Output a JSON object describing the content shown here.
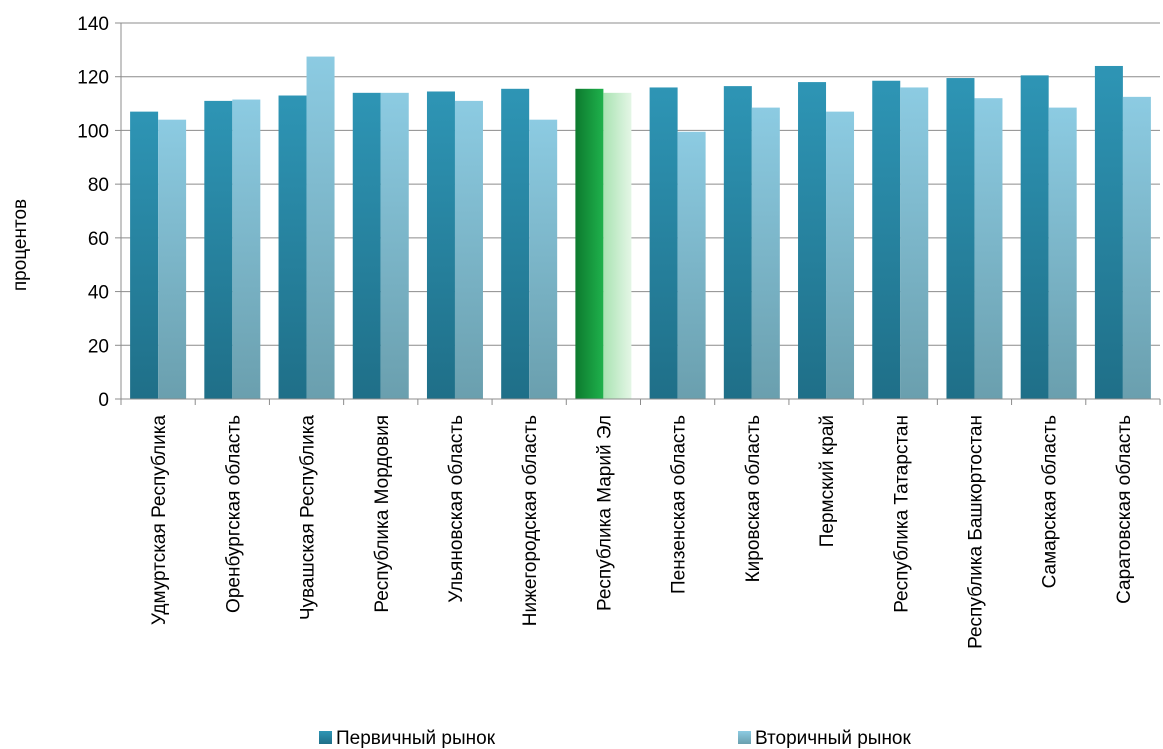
{
  "chart_data": {
    "type": "bar",
    "title": "",
    "xlabel": "",
    "ylabel": "процентов",
    "ylim": [
      0,
      140
    ],
    "yticks": [
      0,
      20,
      40,
      60,
      80,
      100,
      120,
      140
    ],
    "grid": true,
    "legend_position": "bottom",
    "categories": [
      "Удмуртская Республика",
      "Оренбургская область",
      "Чувашская Республика",
      "Республика Мордовия",
      "Ульяновская область",
      "Нижегородская область",
      "Республика Марий Эл",
      "Пензенская область",
      "Кировская область",
      "Пермский край",
      "Республика Татарстан",
      "Республика Башкортостан",
      "Самарская область",
      "Саратовская область"
    ],
    "highlight_category": "Республика Марий Эл",
    "series": [
      {
        "name": "Первичный рынок",
        "color": "#2a86a6",
        "values": [
          107,
          111,
          113,
          114,
          114.5,
          115.5,
          115.5,
          116,
          116.5,
          118,
          118.5,
          119.5,
          120.5,
          124
        ]
      },
      {
        "name": "Вторичный рынок",
        "color": "#86c5dc",
        "values": [
          104,
          111.5,
          127.5,
          114,
          111,
          104,
          114,
          99.5,
          108.5,
          107,
          116,
          112,
          108.5,
          112.5
        ]
      }
    ]
  }
}
